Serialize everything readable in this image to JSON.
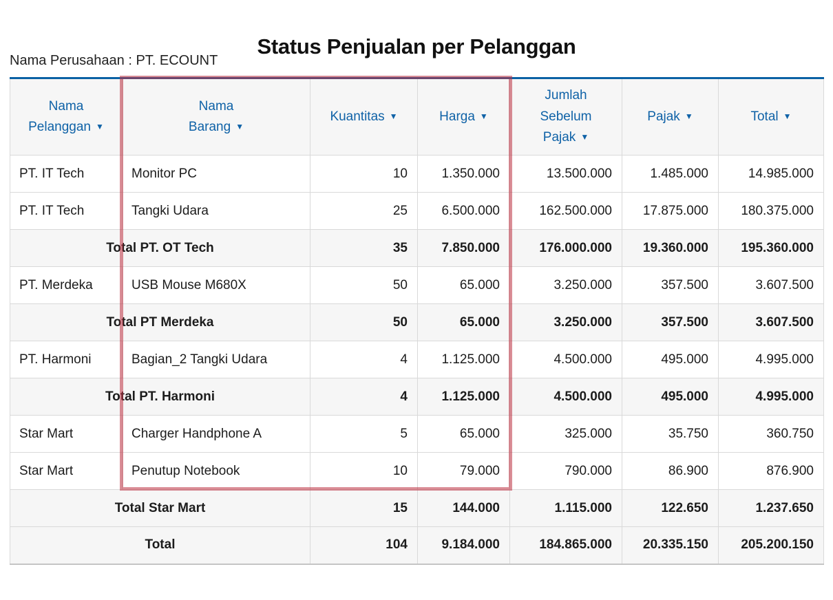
{
  "page": {
    "title": "Status Penjualan per Pelanggan",
    "company_label": "Nama Perusahaan : PT. ECOUNT"
  },
  "table": {
    "sort_icon": "▼",
    "columns": [
      {
        "key": "nama-pelanggan",
        "label": "Nama Pelanggan",
        "lines": [
          "Nama",
          "Pelanggan"
        ]
      },
      {
        "key": "nama-barang",
        "label": "Nama Barang",
        "lines": [
          "Nama",
          "Barang"
        ]
      },
      {
        "key": "kuantitas",
        "label": "Kuantitas",
        "lines": [
          "Kuantitas"
        ]
      },
      {
        "key": "harga",
        "label": "Harga",
        "lines": [
          "Harga"
        ]
      },
      {
        "key": "jumlah-sebelum-pajak",
        "label": "Jumlah Sebelum Pajak",
        "lines": [
          "Jumlah",
          "Sebelum",
          "Pajak"
        ]
      },
      {
        "key": "pajak",
        "label": "Pajak",
        "lines": [
          "Pajak"
        ]
      },
      {
        "key": "total",
        "label": "Total",
        "lines": [
          "Total"
        ]
      }
    ],
    "rows": [
      {
        "type": "data",
        "cells": [
          "PT. IT Tech",
          "Monitor PC",
          "10",
          "1.350.000",
          "13.500.000",
          "1.485.000",
          "14.985.000"
        ]
      },
      {
        "type": "data",
        "cells": [
          "PT. IT Tech",
          "Tangki Udara",
          "25",
          "6.500.000",
          "162.500.000",
          "17.875.000",
          "180.375.000"
        ]
      },
      {
        "type": "subtotal",
        "label": "Total PT. OT Tech",
        "cells": [
          "35",
          "7.850.000",
          "176.000.000",
          "19.360.000",
          "195.360.000"
        ]
      },
      {
        "type": "data",
        "cells": [
          "PT. Merdeka",
          "USB Mouse M680X",
          "50",
          "65.000",
          "3.250.000",
          "357.500",
          "3.607.500"
        ]
      },
      {
        "type": "subtotal",
        "label": "Total PT Merdeka",
        "cells": [
          "50",
          "65.000",
          "3.250.000",
          "357.500",
          "3.607.500"
        ]
      },
      {
        "type": "data",
        "cells": [
          "PT. Harmoni",
          "Bagian_2 Tangki Udara",
          "4",
          "1.125.000",
          "4.500.000",
          "495.000",
          "4.995.000"
        ]
      },
      {
        "type": "subtotal",
        "label": "Total PT. Harmoni",
        "cells": [
          "4",
          "1.125.000",
          "4.500.000",
          "495.000",
          "4.995.000"
        ]
      },
      {
        "type": "data",
        "cells": [
          "Star Mart",
          "Charger Handphone A",
          "5",
          "65.000",
          "325.000",
          "35.750",
          "360.750"
        ]
      },
      {
        "type": "data",
        "cells": [
          "Star Mart",
          "Penutup Notebook",
          "10",
          "79.000",
          "790.000",
          "86.900",
          "876.900"
        ]
      },
      {
        "type": "subtotal",
        "label": "Total Star Mart",
        "cells": [
          "15",
          "144.000",
          "1.115.000",
          "122.650",
          "1.237.650"
        ]
      },
      {
        "type": "grand_total",
        "label": "Total",
        "cells": [
          "104",
          "9.184.000",
          "184.865.000",
          "20.335.150",
          "205.200.150"
        ]
      }
    ]
  },
  "colors": {
    "accent_blue_text": "#0f62a7",
    "top_border_blue": "#0a61a4",
    "header_bg": "#f6f6f6",
    "total_row_bg": "#f6f6f6",
    "grid_border": "#d9d9d9",
    "highlight_red": "#bb3040",
    "highlight_opacity": 0.55,
    "body_text": "#1c1c1c"
  }
}
